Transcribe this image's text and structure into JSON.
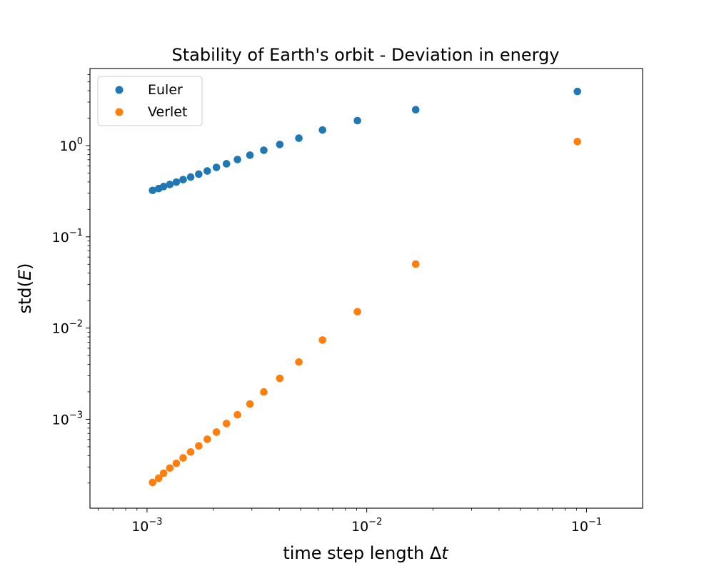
{
  "chart_data": {
    "type": "scatter",
    "title": "Stability of Earth's orbit - Deviation in energy",
    "xlabel": {
      "prefix": "time step length ",
      "symbol": "Δ",
      "var": "t"
    },
    "ylabel": {
      "prefix": "std(",
      "var": "E",
      "suffix": ")"
    },
    "x_scale": "log",
    "y_scale": "log",
    "xlim": [
      0.00055,
      0.18
    ],
    "ylim": [
      0.000106,
      7.0
    ],
    "x_major_ticks": [
      {
        "value": 0.001,
        "base": "10",
        "exp": "−3"
      },
      {
        "value": 0.01,
        "base": "10",
        "exp": "−2"
      },
      {
        "value": 0.1,
        "base": "10",
        "exp": "−1"
      }
    ],
    "y_major_ticks": [
      {
        "value": 0.001,
        "base": "10",
        "exp": "−3"
      },
      {
        "value": 0.01,
        "base": "10",
        "exp": "−2"
      },
      {
        "value": 0.1,
        "base": "10",
        "exp": "−1"
      },
      {
        "value": 1,
        "base": "10",
        "exp": "0"
      }
    ],
    "grid": false,
    "legend_position": "upper-left",
    "series": [
      {
        "name": "Euler",
        "color": "#1f77b4",
        "x": [
          0.00106,
          0.00113,
          0.00119,
          0.00127,
          0.00136,
          0.00146,
          0.00158,
          0.00172,
          0.00188,
          0.00207,
          0.0023,
          0.00258,
          0.00294,
          0.0034,
          0.00402,
          0.00491,
          0.00629,
          0.00907,
          0.0167,
          0.0909
        ],
        "y": [
          0.323,
          0.338,
          0.356,
          0.375,
          0.398,
          0.424,
          0.452,
          0.487,
          0.527,
          0.577,
          0.632,
          0.704,
          0.786,
          0.889,
          1.029,
          1.207,
          1.483,
          1.879,
          2.475,
          3.92
        ]
      },
      {
        "name": "Verlet",
        "color": "#ff7f0e",
        "x": [
          0.00106,
          0.00113,
          0.00119,
          0.00127,
          0.00136,
          0.00146,
          0.00158,
          0.00172,
          0.00188,
          0.00207,
          0.0023,
          0.00258,
          0.00294,
          0.0034,
          0.00402,
          0.00491,
          0.00629,
          0.00907,
          0.0167,
          0.0909
        ],
        "y": [
          0.000203,
          0.000226,
          0.000256,
          0.000292,
          0.000329,
          0.000377,
          0.000438,
          0.000511,
          0.000604,
          0.000723,
          0.000898,
          0.00112,
          0.00147,
          0.00199,
          0.00281,
          0.00424,
          0.00739,
          0.0151,
          0.0503,
          1.107
        ]
      }
    ]
  }
}
